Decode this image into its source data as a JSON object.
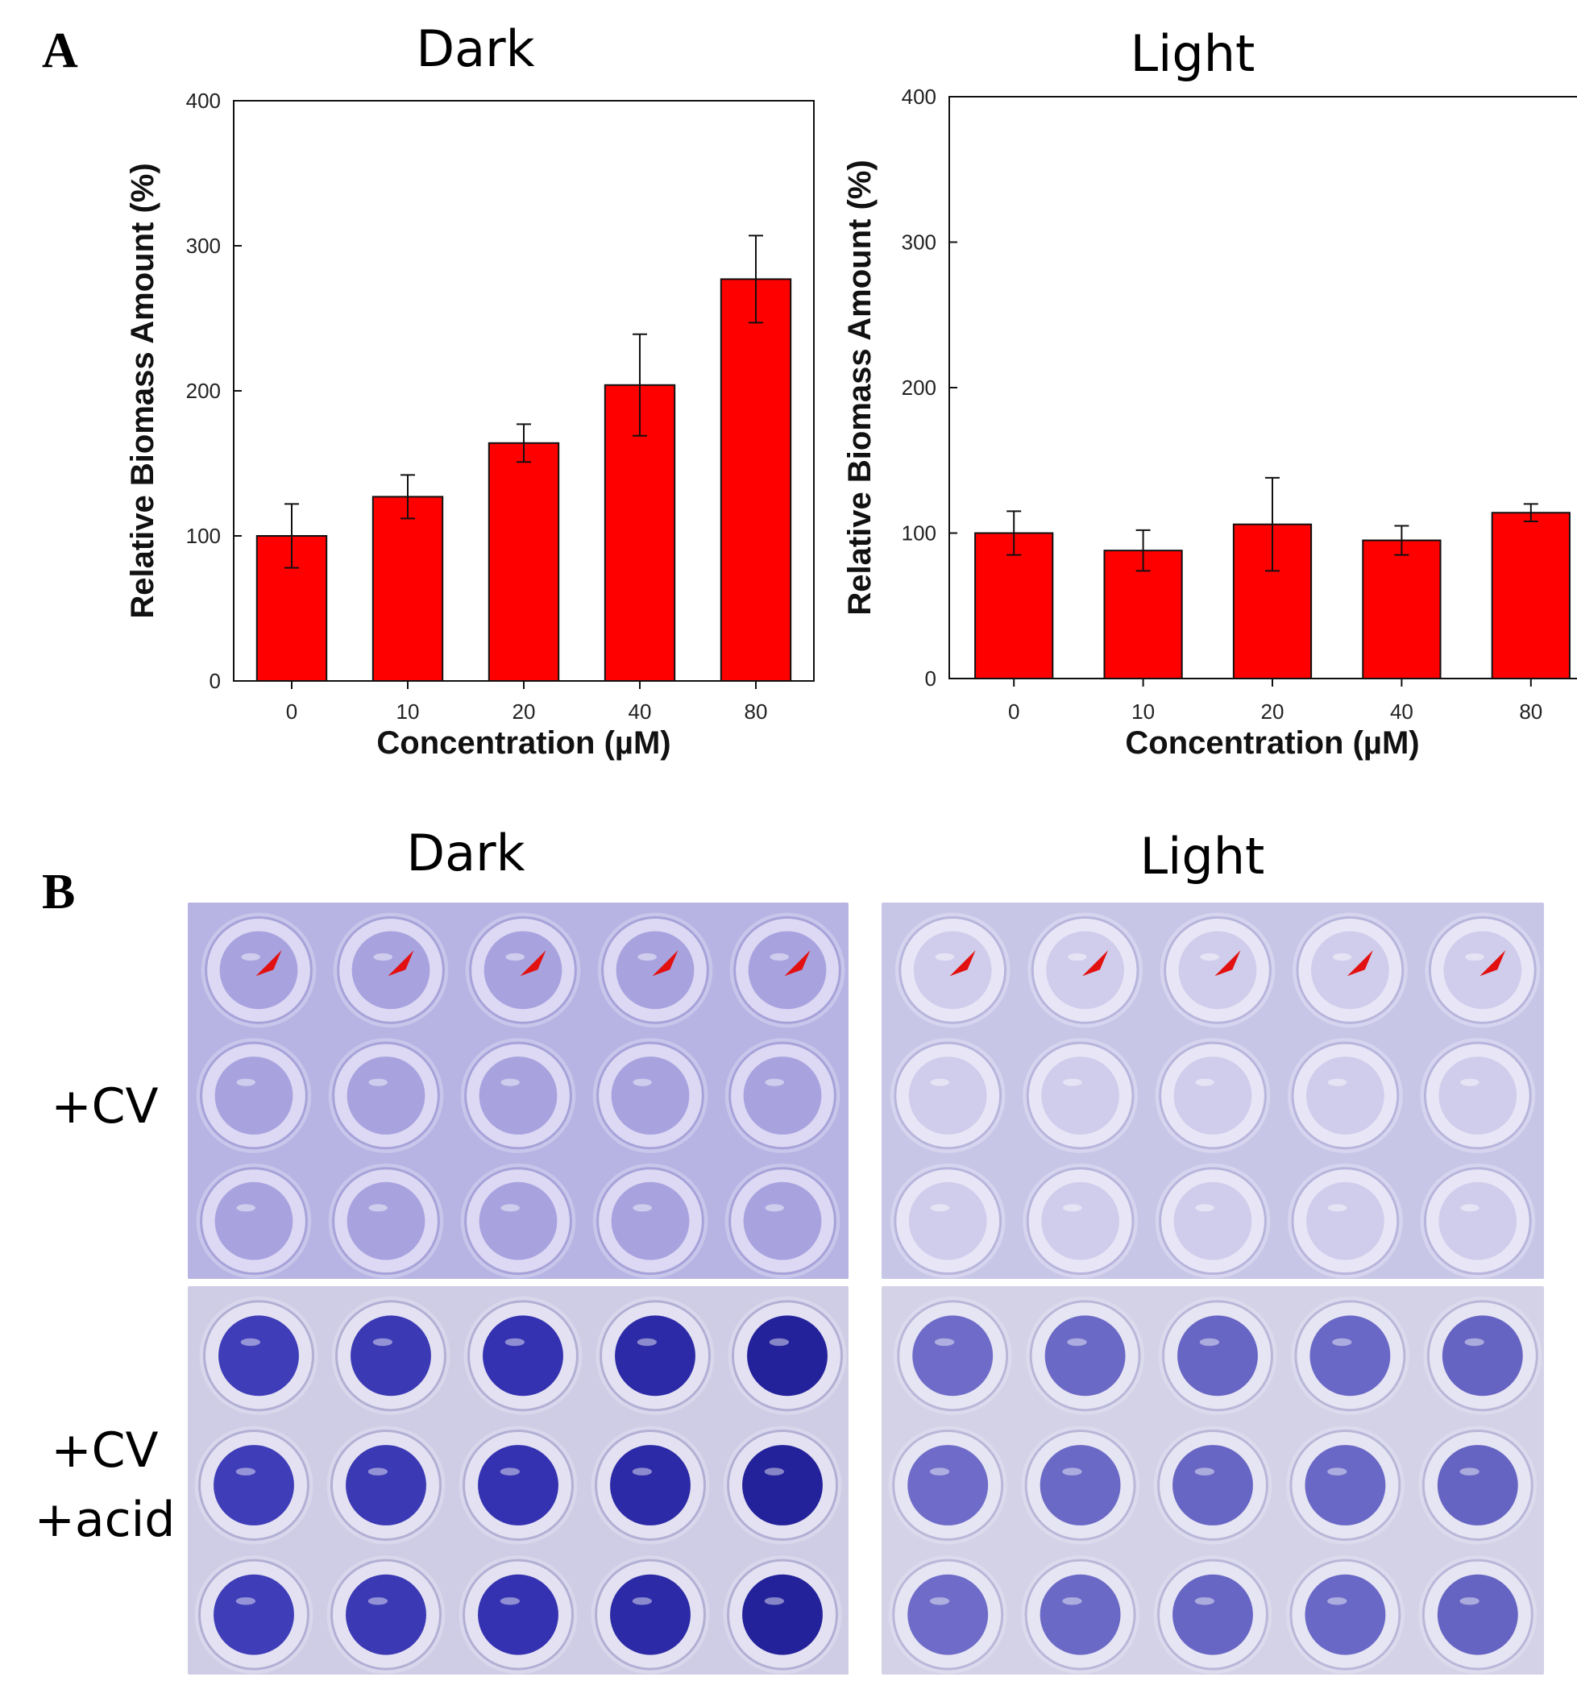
{
  "panel_a": {
    "letter": "A",
    "charts": [
      {
        "condition_title": "Dark"
      },
      {
        "condition_title": "Light"
      }
    ]
  },
  "panel_b": {
    "letter": "B",
    "column_titles": [
      "Dark",
      "Light"
    ],
    "row_labels": [
      {
        "lines": [
          "+CV"
        ]
      },
      {
        "lines": [
          "+CV",
          "+acid"
        ]
      }
    ],
    "well_rows": 3,
    "well_cols": 5,
    "arrowhead_color": "#e31010"
  },
  "colors": {
    "bar_fill": "#ff0000",
    "bar_stroke": "#111111",
    "cv_stain_light": "#b9b5e6",
    "cv_acid_dark": "#3b3ab8"
  },
  "chart_data": [
    {
      "type": "bar",
      "title": "Dark",
      "categories": [
        "0",
        "10",
        "20",
        "40",
        "80"
      ],
      "values": [
        100,
        127,
        164,
        204,
        277
      ],
      "errors": [
        22,
        15,
        13,
        35,
        30
      ],
      "xlabel": "Concentration (µM)",
      "ylabel": "Relative Biomass Amount (%)",
      "ylim": [
        0,
        400
      ],
      "yticks": [
        0,
        100,
        200,
        300,
        400
      ]
    },
    {
      "type": "bar",
      "title": "Light",
      "categories": [
        "0",
        "10",
        "20",
        "40",
        "80"
      ],
      "values": [
        100,
        88,
        106,
        95,
        114
      ],
      "errors": [
        15,
        14,
        32,
        10,
        6
      ],
      "xlabel": "Concentration (µM)",
      "ylabel": "Relative Biomass Amount (%)",
      "ylim": [
        0,
        400
      ],
      "yticks": [
        0,
        100,
        200,
        300,
        400
      ]
    }
  ]
}
